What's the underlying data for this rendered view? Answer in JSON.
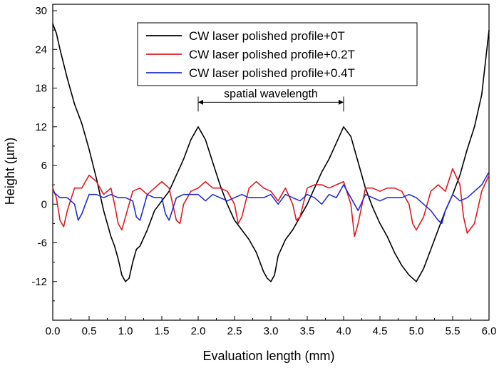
{
  "chart_data": {
    "type": "line",
    "title": "",
    "xlabel": "Evaluation length (mm)",
    "ylabel": "Height (µm)",
    "xlim": [
      0,
      6
    ],
    "ylim": [
      -18,
      31
    ],
    "xticks": [
      "0.0",
      "0.5",
      "1.0",
      "1.5",
      "2.0",
      "2.5",
      "3.0",
      "3.5",
      "4.0",
      "4.5",
      "5.0",
      "5.5",
      "6.0"
    ],
    "yticks": [
      "-12",
      "-6",
      "0",
      "6",
      "12",
      "18",
      "24",
      "30"
    ],
    "grid": false,
    "legend_position": "top-center",
    "annotation": {
      "text": "spatial wavelength",
      "x_start": 2.0,
      "x_end": 4.0,
      "y": 15.8
    },
    "series": [
      {
        "name": "CW laser polished profile+0T",
        "color": "#000000",
        "x": [
          0.0,
          0.05,
          0.1,
          0.2,
          0.3,
          0.4,
          0.5,
          0.6,
          0.7,
          0.8,
          0.85,
          0.9,
          0.95,
          1.0,
          1.05,
          1.1,
          1.15,
          1.2,
          1.3,
          1.4,
          1.5,
          1.6,
          1.7,
          1.8,
          1.9,
          2.0,
          2.1,
          2.2,
          2.3,
          2.4,
          2.5,
          2.6,
          2.7,
          2.8,
          2.9,
          2.95,
          3.0,
          3.05,
          3.1,
          3.2,
          3.3,
          3.4,
          3.5,
          3.6,
          3.7,
          3.8,
          3.9,
          4.0,
          4.1,
          4.2,
          4.3,
          4.4,
          4.5,
          4.6,
          4.7,
          4.8,
          4.9,
          5.0,
          5.1,
          5.2,
          5.3,
          5.4,
          5.5,
          5.6,
          5.7,
          5.8,
          5.9,
          6.0
        ],
        "values": [
          28,
          26.5,
          24,
          19.5,
          15.5,
          12.5,
          8.5,
          4,
          -1,
          -5,
          -6.5,
          -8.5,
          -11,
          -12,
          -11.5,
          -9,
          -7,
          -6.5,
          -4,
          -1,
          0.5,
          2,
          4.5,
          7,
          10,
          12,
          10,
          6.5,
          3,
          0,
          -2.5,
          -4,
          -5.5,
          -7.5,
          -10.5,
          -11.5,
          -12,
          -11,
          -8,
          -5.5,
          -4,
          -2,
          0,
          2.5,
          5,
          7,
          9.5,
          12,
          10.5,
          6.5,
          2.5,
          -0.5,
          -3,
          -5,
          -7.5,
          -9.5,
          -11,
          -12,
          -10,
          -7,
          -4,
          -1,
          1.5,
          4.5,
          8.5,
          12,
          17,
          27
        ]
      },
      {
        "name": "CW laser polished profile+0.2T",
        "color": "#e0191f",
        "x": [
          0.0,
          0.05,
          0.1,
          0.15,
          0.2,
          0.3,
          0.4,
          0.5,
          0.6,
          0.7,
          0.8,
          0.85,
          0.9,
          0.95,
          1.0,
          1.1,
          1.2,
          1.3,
          1.4,
          1.5,
          1.6,
          1.65,
          1.7,
          1.75,
          1.8,
          1.9,
          2.0,
          2.1,
          2.2,
          2.3,
          2.4,
          2.5,
          2.55,
          2.6,
          2.7,
          2.8,
          2.9,
          3.0,
          3.1,
          3.2,
          3.3,
          3.35,
          3.4,
          3.5,
          3.6,
          3.7,
          3.8,
          3.9,
          4.0,
          4.1,
          4.15,
          4.2,
          4.3,
          4.4,
          4.5,
          4.6,
          4.7,
          4.8,
          4.9,
          4.95,
          5.0,
          5.1,
          5.2,
          5.3,
          5.4,
          5.5,
          5.6,
          5.65,
          5.7,
          5.8,
          5.9,
          6.0
        ],
        "values": [
          2.5,
          1,
          -2.5,
          -3.5,
          -1,
          2.5,
          2.5,
          4.5,
          3.5,
          1.5,
          2.5,
          0,
          -3,
          -4,
          -2,
          2,
          2.5,
          1.5,
          2.5,
          3.5,
          2.5,
          0,
          -2.5,
          -3,
          0,
          2,
          2.5,
          3.5,
          2.5,
          2.5,
          2,
          0,
          -3,
          -2,
          2.5,
          3.5,
          2.5,
          2,
          0.5,
          2.5,
          0,
          -2.5,
          -2,
          2.5,
          3,
          3,
          2.5,
          3,
          3.5,
          0,
          -5,
          -3,
          2.5,
          2.5,
          2,
          2.5,
          2.5,
          2,
          0,
          -3,
          -4,
          -2,
          2,
          3,
          2,
          5.5,
          3,
          -2,
          -4.5,
          -3,
          2,
          4.5
        ]
      },
      {
        "name": "CW laser polished profile+0.4T",
        "color": "#1f2fd0",
        "x": [
          0.0,
          0.1,
          0.2,
          0.3,
          0.35,
          0.4,
          0.5,
          0.6,
          0.7,
          0.8,
          0.9,
          1.0,
          1.1,
          1.15,
          1.2,
          1.3,
          1.4,
          1.5,
          1.55,
          1.6,
          1.7,
          1.8,
          1.9,
          2.0,
          2.1,
          2.2,
          2.3,
          2.4,
          2.5,
          2.6,
          2.7,
          2.8,
          2.9,
          3.0,
          3.1,
          3.2,
          3.3,
          3.4,
          3.5,
          3.6,
          3.7,
          3.8,
          3.9,
          4.0,
          4.1,
          4.2,
          4.3,
          4.4,
          4.5,
          4.6,
          4.7,
          4.8,
          4.9,
          5.0,
          5.1,
          5.2,
          5.3,
          5.35,
          5.4,
          5.5,
          5.6,
          5.7,
          5.8,
          5.9,
          6.0
        ],
        "values": [
          2,
          1,
          1,
          0,
          -2.5,
          -1.5,
          1.5,
          1.5,
          1,
          1.5,
          1,
          1,
          0.5,
          -2,
          -2.5,
          1.5,
          1,
          1,
          -1.5,
          -2.5,
          1,
          1.5,
          1.5,
          1.5,
          0.5,
          1.5,
          1,
          0.5,
          1,
          1.5,
          1,
          1,
          1,
          1.5,
          0,
          1.5,
          1,
          0.5,
          1.5,
          1,
          0,
          1.5,
          1,
          3,
          1,
          -1,
          1.5,
          1,
          0.5,
          1,
          1,
          1,
          1.5,
          1,
          0,
          -1,
          -2.5,
          -3,
          -1,
          1.5,
          0.5,
          1,
          2,
          3,
          5
        ]
      }
    ]
  }
}
